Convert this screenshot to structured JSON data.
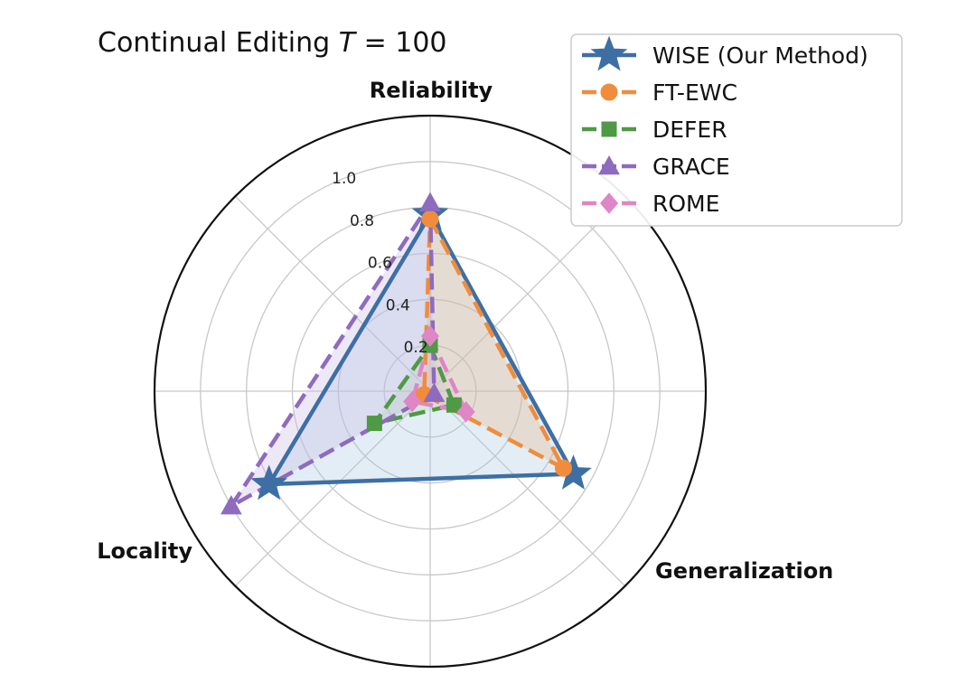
{
  "chart_data": {
    "type": "radar",
    "title": "Continual Editing T = 100",
    "title_parts": {
      "prefix": "Continual Editing ",
      "var": "T",
      "rest": " = 100"
    },
    "axes": [
      "Reliability",
      "Generalization",
      "Locality"
    ],
    "rlim": [
      0,
      1.2
    ],
    "r_ticks": [
      0.2,
      0.4,
      0.6,
      0.8,
      1.0
    ],
    "r_tick_labels": [
      "0.2",
      "0.4",
      "0.6",
      "0.8",
      "1.0"
    ],
    "grid": true,
    "legend_position": "top-right",
    "series": [
      {
        "name": "WISE (Our Method)",
        "values": [
          0.77,
          0.72,
          0.81
        ],
        "color": "#3d6fa5",
        "marker": "star",
        "linestyle": "solid",
        "fill": "#a9c8e0"
      },
      {
        "name": "FT-EWC",
        "values": [
          0.75,
          0.67,
          0.03
        ],
        "color": "#f08c3c",
        "marker": "circle",
        "linestyle": "dashed",
        "fill": "#e6b88c"
      },
      {
        "name": "DEFER",
        "values": [
          0.2,
          0.12,
          0.28
        ],
        "color": "#4e9a45",
        "marker": "square",
        "linestyle": "dashed",
        "fill": "#b8d8b0"
      },
      {
        "name": "GRACE",
        "values": [
          0.82,
          0.02,
          1.0
        ],
        "color": "#8e6bbf",
        "marker": "triangle",
        "linestyle": "dashed",
        "fill": "#c6b6e2"
      },
      {
        "name": "ROME",
        "values": [
          0.24,
          0.18,
          0.09
        ],
        "color": "#de86c6",
        "marker": "diamond",
        "linestyle": "dashed",
        "fill": "#eec4e2"
      }
    ]
  }
}
